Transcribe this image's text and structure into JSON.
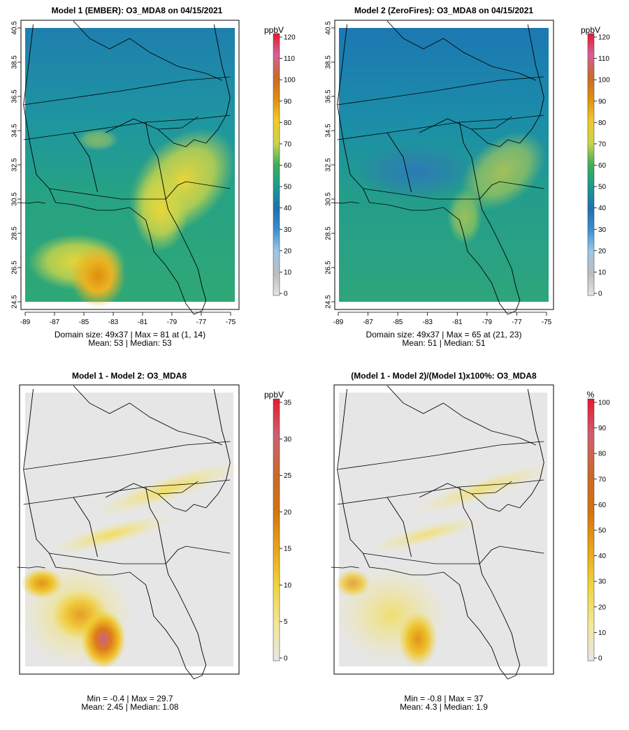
{
  "chart_data": [
    {
      "type": "heatmap",
      "title": "Model 1 (EMBER): O3_MDA8 on 04/15/2021",
      "x_ticks": [
        "-89",
        "-87",
        "-85",
        "-83",
        "-81",
        "-79",
        "-77",
        "-75"
      ],
      "y_ticks": [
        "24.5",
        "26.5",
        "28.5",
        "30.5",
        "32.5",
        "34.5",
        "36.5",
        "38.5",
        "40.5"
      ],
      "xlim": [
        -89,
        -75
      ],
      "ylim": [
        24.5,
        40.5
      ],
      "grid_size": "49x37",
      "colorbar": {
        "unit": "ppbV",
        "range": [
          0,
          120
        ],
        "ticks": [
          "0",
          "10",
          "20",
          "30",
          "40",
          "50",
          "60",
          "70",
          "80",
          "90",
          "100",
          "110",
          "120"
        ],
        "palette": [
          "#e4e4e4",
          "#9ac7e6",
          "#2f7fc0",
          "#1a9c8c",
          "#3faf5a",
          "#c9d44b",
          "#f0c929",
          "#df8f0f",
          "#c86a2a",
          "#d5609a",
          "#e8192c"
        ]
      },
      "stats_line1": "Domain size: 49x37 | Max = 81 at (1, 14)",
      "stats_line2": "Mean: 53 |  Median: 53",
      "mean": 53,
      "median": 53,
      "max": 81
    },
    {
      "type": "heatmap",
      "title": "Model 2 (ZeroFires): O3_MDA8 on 04/15/2021",
      "x_ticks": [
        "-89",
        "-87",
        "-85",
        "-83",
        "-81",
        "-79",
        "-77",
        "-75"
      ],
      "y_ticks": [
        "24.5",
        "26.5",
        "28.5",
        "30.5",
        "32.5",
        "34.5",
        "36.5",
        "38.5",
        "40.5"
      ],
      "xlim": [
        -89,
        -75
      ],
      "ylim": [
        24.5,
        40.5
      ],
      "grid_size": "49x37",
      "colorbar": {
        "unit": "ppbV",
        "range": [
          0,
          120
        ],
        "ticks": [
          "0",
          "10",
          "20",
          "30",
          "40",
          "50",
          "60",
          "70",
          "80",
          "90",
          "100",
          "110",
          "120"
        ],
        "palette": [
          "#e4e4e4",
          "#9ac7e6",
          "#2f7fc0",
          "#1a9c8c",
          "#3faf5a",
          "#c9d44b",
          "#f0c929",
          "#df8f0f",
          "#c86a2a",
          "#d5609a",
          "#e8192c"
        ]
      },
      "stats_line1": "Domain size: 49x37 | Max = 65 at (21, 23)",
      "stats_line2": "Mean: 51 |  Median: 51",
      "mean": 51,
      "median": 51,
      "max": 65
    },
    {
      "type": "heatmap",
      "title": "Model 1 - Model 2: O3_MDA8",
      "x_ticks": [],
      "y_ticks": [],
      "colorbar": {
        "unit": "ppbV",
        "range": [
          0,
          35
        ],
        "ticks": [
          "0",
          "5",
          "10",
          "15",
          "20",
          "25",
          "30",
          "35"
        ],
        "palette": [
          "#e6e6e6",
          "#f3e79a",
          "#f0d43a",
          "#e8a419",
          "#d5730f",
          "#cf5f72",
          "#e8192c"
        ]
      },
      "stats_line1": "Min = -0.4 | Max = 29.7",
      "stats_line2": "Mean: 2.45 |  Median: 1.08",
      "min": -0.4,
      "max": 29.7,
      "mean": 2.45,
      "median": 1.08
    },
    {
      "type": "heatmap",
      "title": "(Model 1 - Model 2)/(Model 1)x100%: O3_MDA8",
      "x_ticks": [],
      "y_ticks": [],
      "colorbar": {
        "unit": "%",
        "range": [
          0,
          100
        ],
        "ticks": [
          "0",
          "10",
          "20",
          "30",
          "40",
          "50",
          "60",
          "70",
          "80",
          "90",
          "100"
        ],
        "palette": [
          "#e6e6e6",
          "#f3e79a",
          "#f0d43a",
          "#e8a419",
          "#d5730f",
          "#cf5f72",
          "#e8192c"
        ]
      },
      "stats_line1": "Min = -0.8 | Max = 37",
      "stats_line2": "Mean: 4.3 |  Median: 1.9",
      "min": -0.8,
      "max": 37,
      "mean": 4.3,
      "median": 1.9
    }
  ]
}
